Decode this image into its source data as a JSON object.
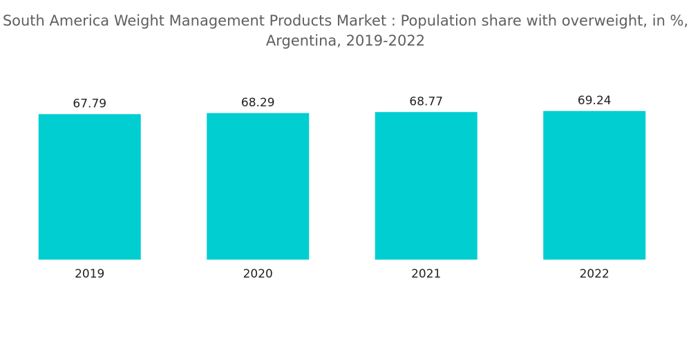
{
  "chart_data": {
    "type": "bar",
    "title": "South America Weight Management Products Market : Population share with overweight, in %, Argentina, 2019-2022",
    "categories": [
      "2019",
      "2020",
      "2021",
      "2022"
    ],
    "values": [
      67.79,
      68.29,
      68.77,
      69.24
    ],
    "value_labels": [
      "67.79",
      "68.29",
      "68.77",
      "69.24"
    ],
    "xlabel": "",
    "ylabel": "",
    "ylim": [
      0,
      74
    ],
    "grid": false,
    "legend": "none",
    "bar_color": "#00CED1"
  }
}
